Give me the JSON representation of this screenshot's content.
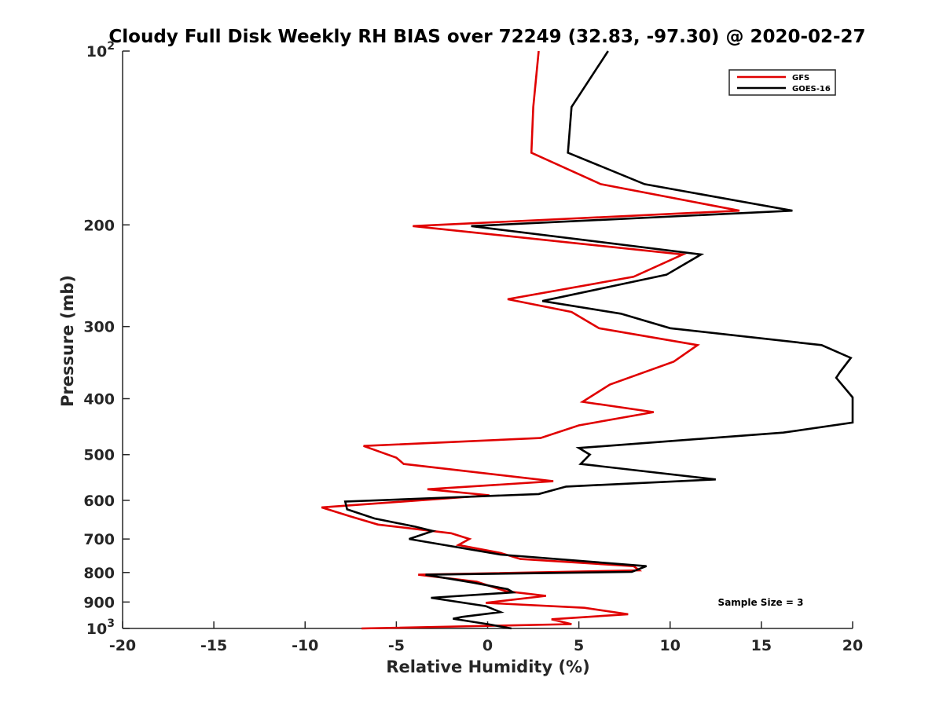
{
  "chart_data": {
    "type": "line",
    "title": "Cloudy Full Disk Weekly RH BIAS over 72249 (32.83, -97.30) @ 2020-02-27",
    "xlabel": "Relative Humidity (%)",
    "ylabel": "Pressure (mb)",
    "xlim": [
      -20,
      20
    ],
    "ylim": [
      100,
      1000
    ],
    "y_scale": "log",
    "y_reversed": true,
    "x_ticks": [
      -20,
      -15,
      -10,
      -5,
      0,
      5,
      10,
      15,
      20
    ],
    "x_tick_labels": [
      "-20",
      "-15",
      "-10",
      "-5",
      "0",
      "5",
      "10",
      "15",
      "20"
    ],
    "y_ticks": [
      100,
      200,
      300,
      400,
      500,
      600,
      700,
      800,
      900,
      1000
    ],
    "y_tick_labels": [
      {
        "base": "10",
        "exp": "2"
      },
      {
        "base": "200",
        "exp": ""
      },
      {
        "base": "300",
        "exp": ""
      },
      {
        "base": "400",
        "exp": ""
      },
      {
        "base": "500",
        "exp": ""
      },
      {
        "base": "600",
        "exp": ""
      },
      {
        "base": "700",
        "exp": ""
      },
      {
        "base": "800",
        "exp": ""
      },
      {
        "base": "900",
        "exp": ""
      },
      {
        "base": "10",
        "exp": "3"
      }
    ],
    "grid": false,
    "legend_position": "top-right",
    "annotation": "Sample Size = 3",
    "series": [
      {
        "name": "GFS",
        "color": "#e00000",
        "points": [
          [
            2.8,
            100
          ],
          [
            2.5,
            125
          ],
          [
            2.4,
            150
          ],
          [
            6.2,
            170
          ],
          [
            13.8,
            189
          ],
          [
            -4.1,
            201
          ],
          [
            10.7,
            225
          ],
          [
            8.0,
            246
          ],
          [
            1.1,
            269
          ],
          [
            4.6,
            283
          ],
          [
            6.1,
            302
          ],
          [
            11.5,
            323
          ],
          [
            10.2,
            345
          ],
          [
            6.7,
            378
          ],
          [
            5.2,
            405
          ],
          [
            9.1,
            422
          ],
          [
            5.0,
            445
          ],
          [
            2.9,
            468
          ],
          [
            -6.8,
            483
          ],
          [
            -5.0,
            506
          ],
          [
            -4.6,
            519
          ],
          [
            3.6,
            556
          ],
          [
            -3.3,
            574
          ],
          [
            0.1,
            588
          ],
          [
            -9.1,
            617
          ],
          [
            -7.5,
            640
          ],
          [
            -6.0,
            661
          ],
          [
            -2.0,
            684
          ],
          [
            -1.0,
            700
          ],
          [
            -1.6,
            717
          ],
          [
            0.7,
            740
          ],
          [
            1.8,
            758
          ],
          [
            8.0,
            780
          ],
          [
            8.3,
            793
          ],
          [
            -3.8,
            807
          ],
          [
            -0.6,
            830
          ],
          [
            1.0,
            862
          ],
          [
            3.2,
            878
          ],
          [
            -0.1,
            903
          ],
          [
            5.3,
            921
          ],
          [
            7.7,
            945
          ],
          [
            3.5,
            964
          ],
          [
            4.6,
            983
          ],
          [
            -6.9,
            1000
          ]
        ]
      },
      {
        "name": "GOES-16",
        "color": "#000000",
        "points": [
          [
            6.6,
            100
          ],
          [
            4.6,
            125
          ],
          [
            4.4,
            150
          ],
          [
            8.6,
            170
          ],
          [
            16.7,
            189
          ],
          [
            -0.9,
            201
          ],
          [
            11.7,
            225
          ],
          [
            9.8,
            244
          ],
          [
            3.0,
            271
          ],
          [
            7.3,
            285
          ],
          [
            10.0,
            302
          ],
          [
            18.3,
            323
          ],
          [
            19.9,
            340
          ],
          [
            19.3,
            360
          ],
          [
            19.1,
            368
          ],
          [
            20.0,
            398
          ],
          [
            20.0,
            440
          ],
          [
            16.2,
            458
          ],
          [
            5.0,
            487
          ],
          [
            5.6,
            500
          ],
          [
            5.1,
            519
          ],
          [
            12.5,
            552
          ],
          [
            4.3,
            568
          ],
          [
            2.8,
            585
          ],
          [
            -7.8,
            603
          ],
          [
            -7.7,
            622
          ],
          [
            -6.2,
            645
          ],
          [
            -4.0,
            666
          ],
          [
            -3.0,
            678
          ],
          [
            -4.3,
            700
          ],
          [
            0.7,
            745
          ],
          [
            8.7,
            780
          ],
          [
            7.9,
            798
          ],
          [
            -3.4,
            807
          ],
          [
            -0.8,
            833
          ],
          [
            1.1,
            855
          ],
          [
            1.4,
            866
          ],
          [
            -3.1,
            885
          ],
          [
            -0.1,
            915
          ],
          [
            0.7,
            937
          ],
          [
            -1.4,
            955
          ],
          [
            -1.9,
            962
          ],
          [
            0.0,
            983
          ],
          [
            1.3,
            1000
          ]
        ]
      }
    ]
  }
}
